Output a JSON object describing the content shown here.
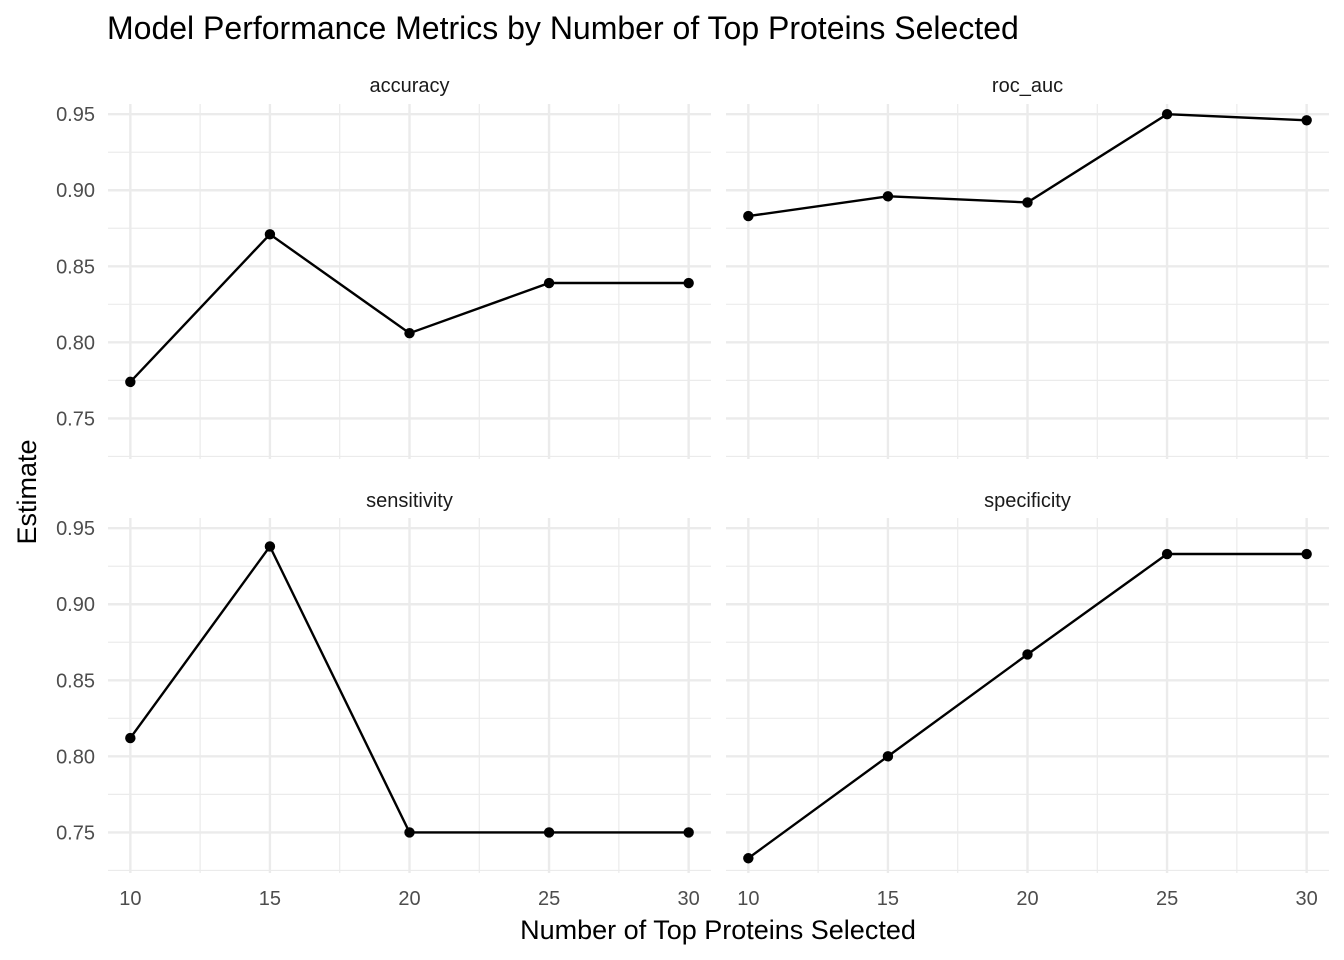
{
  "chart_data": {
    "type": "line",
    "title": "Model Performance Metrics by Number of Top Proteins Selected",
    "xlabel": "Number of Top Proteins Selected",
    "ylabel": "Estimate",
    "x_ticks": [
      10,
      15,
      20,
      25,
      30
    ],
    "y_ticks": [
      0.75,
      0.8,
      0.85,
      0.9,
      0.95
    ],
    "x_tick_labels": [
      "10",
      "15",
      "20",
      "25",
      "30"
    ],
    "y_tick_labels": [
      "0.75",
      "0.80",
      "0.85",
      "0.90",
      "0.95"
    ],
    "xlim": [
      9.2,
      30.8
    ],
    "ylim": [
      0.7233,
      0.9567
    ],
    "minor_y": [
      0.725,
      0.775,
      0.825,
      0.875,
      0.925
    ],
    "minor_x": [
      12.5,
      17.5,
      22.5,
      27.5
    ],
    "grid": true,
    "series_color": "#000000",
    "panels": [
      {
        "strip": "accuracy",
        "x": [
          10,
          15,
          20,
          25,
          30
        ],
        "y": [
          0.774,
          0.871,
          0.806,
          0.839,
          0.839
        ]
      },
      {
        "strip": "roc_auc",
        "x": [
          10,
          15,
          20,
          25,
          30
        ],
        "y": [
          0.883,
          0.896,
          0.892,
          0.95,
          0.946
        ]
      },
      {
        "strip": "sensitivity",
        "x": [
          10,
          15,
          20,
          25,
          30
        ],
        "y": [
          0.812,
          0.938,
          0.75,
          0.75,
          0.75
        ]
      },
      {
        "strip": "specificity",
        "x": [
          10,
          15,
          20,
          25,
          30
        ],
        "y": [
          0.733,
          0.8,
          0.867,
          0.933,
          0.933
        ]
      }
    ]
  }
}
